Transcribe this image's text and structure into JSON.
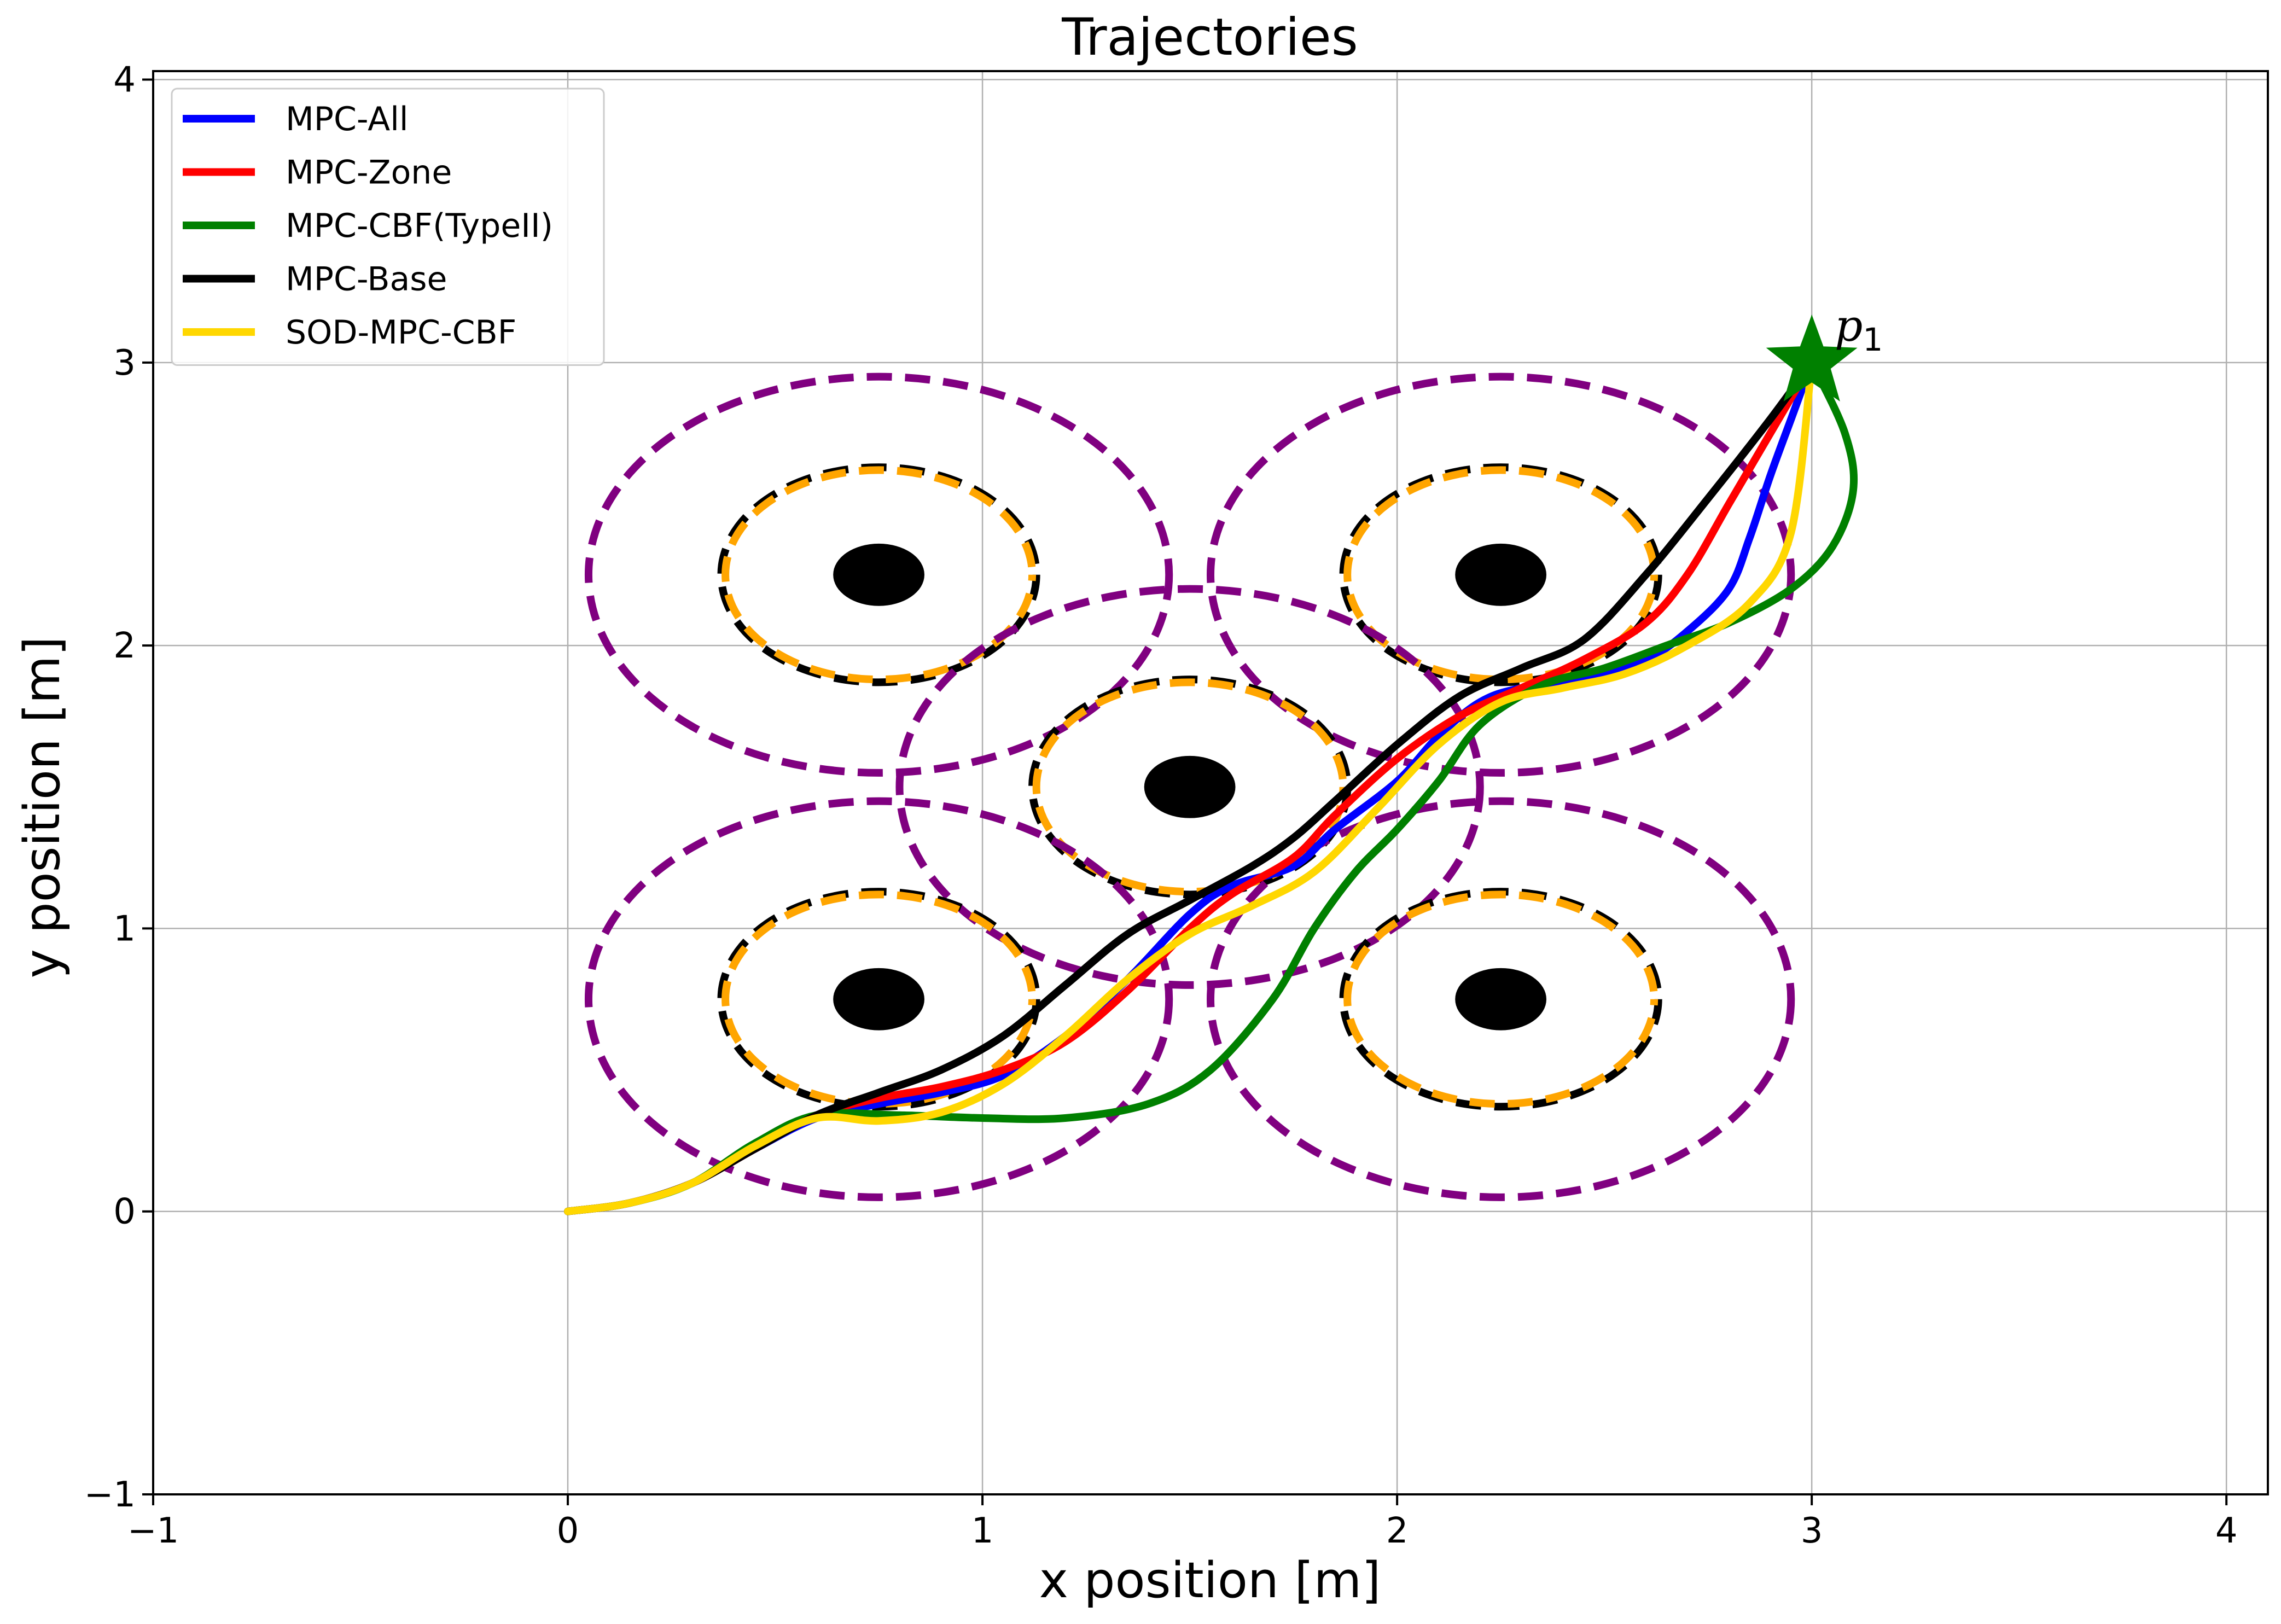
{
  "chart_data": {
    "type": "line",
    "title": "Trajectories",
    "xlabel": "x position [m]",
    "ylabel": "y position [m]",
    "xlim": [
      -1,
      4.1
    ],
    "ylim": [
      -1,
      4.03
    ],
    "xticks": [
      -1,
      0,
      1,
      2,
      3,
      4
    ],
    "yticks": [
      -1,
      0,
      1,
      2,
      3,
      4
    ],
    "xtick_labels": [
      "−1",
      "0",
      "1",
      "2",
      "3",
      "4"
    ],
    "ytick_labels": [
      "−1",
      "0",
      "1",
      "2",
      "3",
      "4"
    ],
    "grid": true,
    "legend_position": "top-left",
    "series": [
      {
        "name": "MPC-All",
        "color": "#0000ff",
        "x": [
          0,
          0.15,
          0.3,
          0.45,
          0.6,
          0.75,
          0.9,
          1.05,
          1.2,
          1.35,
          1.5,
          1.6,
          1.75,
          1.85,
          2.0,
          2.1,
          2.2,
          2.3,
          2.45,
          2.6,
          2.7,
          2.8,
          2.85,
          2.9,
          2.95,
          3.0
        ],
        "y": [
          0,
          0.03,
          0.1,
          0.22,
          0.33,
          0.38,
          0.42,
          0.48,
          0.62,
          0.82,
          1.05,
          1.15,
          1.22,
          1.35,
          1.52,
          1.68,
          1.8,
          1.85,
          1.88,
          1.95,
          2.05,
          2.2,
          2.38,
          2.6,
          2.8,
          3.0
        ]
      },
      {
        "name": "MPC-Zone",
        "color": "#ff0000",
        "x": [
          0,
          0.15,
          0.3,
          0.45,
          0.6,
          0.75,
          0.9,
          1.05,
          1.2,
          1.35,
          1.5,
          1.6,
          1.75,
          1.85,
          2.0,
          2.15,
          2.3,
          2.45,
          2.6,
          2.7,
          2.8,
          2.9,
          3.0
        ],
        "y": [
          0,
          0.03,
          0.1,
          0.22,
          0.34,
          0.4,
          0.44,
          0.5,
          0.6,
          0.78,
          1.0,
          1.12,
          1.25,
          1.4,
          1.6,
          1.75,
          1.85,
          1.95,
          2.08,
          2.25,
          2.5,
          2.75,
          3.0
        ]
      },
      {
        "name": "MPC-CBF(TypeII)",
        "color": "#008000",
        "x": [
          0,
          0.15,
          0.3,
          0.45,
          0.6,
          0.8,
          1.0,
          1.2,
          1.4,
          1.55,
          1.7,
          1.8,
          1.9,
          2.0,
          2.1,
          2.2,
          2.35,
          2.5,
          2.65,
          2.8,
          2.95,
          3.05,
          3.1,
          3.08,
          3.0
        ],
        "y": [
          0,
          0.03,
          0.1,
          0.24,
          0.34,
          0.34,
          0.33,
          0.33,
          0.38,
          0.5,
          0.75,
          1.0,
          1.2,
          1.35,
          1.52,
          1.72,
          1.86,
          1.92,
          2.0,
          2.08,
          2.2,
          2.35,
          2.55,
          2.75,
          3.0
        ]
      },
      {
        "name": "MPC-Base",
        "color": "#000000",
        "x": [
          0,
          0.15,
          0.3,
          0.45,
          0.6,
          0.75,
          0.9,
          1.05,
          1.2,
          1.35,
          1.5,
          1.65,
          1.75,
          1.85,
          2.0,
          2.15,
          2.3,
          2.45,
          2.6,
          2.75,
          2.9,
          3.0
        ],
        "y": [
          0,
          0.03,
          0.1,
          0.22,
          0.34,
          0.42,
          0.5,
          0.62,
          0.8,
          0.98,
          1.1,
          1.22,
          1.32,
          1.45,
          1.65,
          1.82,
          1.92,
          2.02,
          2.25,
          2.52,
          2.8,
          3.0
        ]
      },
      {
        "name": "SOD-MPC-CBF",
        "color": "#ffd700",
        "x": [
          0,
          0.15,
          0.3,
          0.45,
          0.6,
          0.75,
          0.9,
          1.05,
          1.2,
          1.35,
          1.5,
          1.65,
          1.8,
          1.95,
          2.1,
          2.25,
          2.4,
          2.55,
          2.7,
          2.85,
          2.95,
          3.0
        ],
        "y": [
          0,
          0.03,
          0.1,
          0.23,
          0.33,
          0.32,
          0.35,
          0.45,
          0.62,
          0.82,
          0.98,
          1.08,
          1.2,
          1.42,
          1.65,
          1.8,
          1.85,
          1.9,
          2.0,
          2.15,
          2.4,
          3.0
        ]
      }
    ],
    "obstacles": [
      {
        "center": [
          0.75,
          2.25
        ],
        "core_radius": 0.11,
        "inner_radius": 0.37,
        "zone_radius": 0.38,
        "outer_radius": 0.7
      },
      {
        "center": [
          2.25,
          2.25
        ],
        "core_radius": 0.11,
        "inner_radius": 0.37,
        "zone_radius": 0.38,
        "outer_radius": 0.7
      },
      {
        "center": [
          1.5,
          1.5
        ],
        "core_radius": 0.11,
        "inner_radius": 0.37,
        "zone_radius": 0.38,
        "outer_radius": 0.7
      },
      {
        "center": [
          0.75,
          0.75
        ],
        "core_radius": 0.11,
        "inner_radius": 0.37,
        "zone_radius": 0.38,
        "outer_radius": 0.7
      },
      {
        "center": [
          2.25,
          0.75
        ],
        "core_radius": 0.11,
        "inner_radius": 0.37,
        "zone_radius": 0.38,
        "outer_radius": 0.7
      }
    ],
    "obstacle_colors": {
      "core": "#000000",
      "inner": "#ffa500",
      "zone": "#000000",
      "outer": "#800080"
    },
    "goal": {
      "x": 3,
      "y": 3,
      "color": "#008000",
      "label": "p",
      "label_subscript": "1"
    }
  }
}
